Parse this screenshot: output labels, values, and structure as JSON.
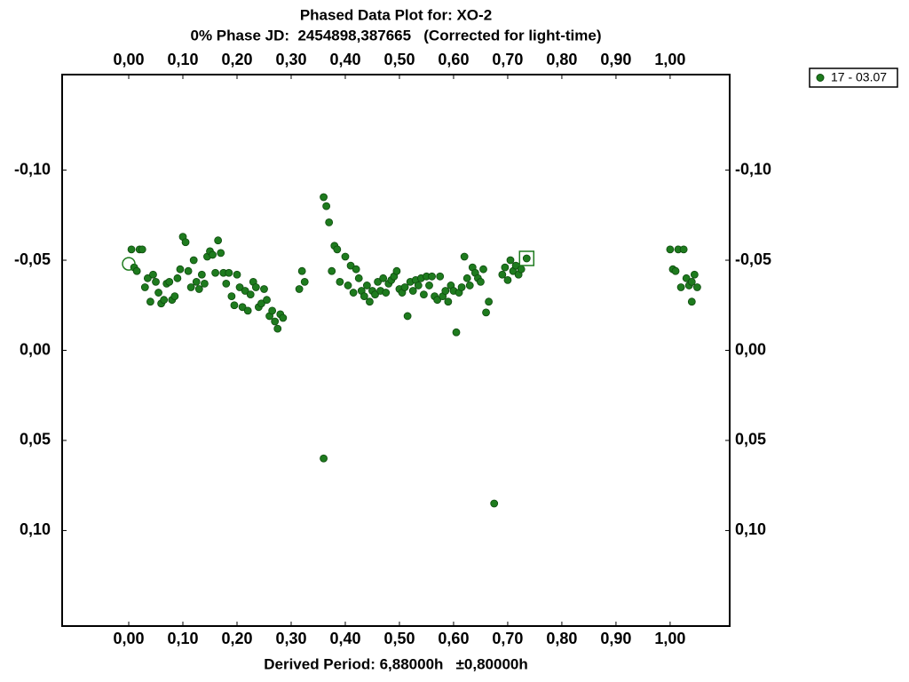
{
  "chart_data": {
    "type": "scatter",
    "title": "Phased Data Plot for: XO-2",
    "subtitle": "0% Phase JD:  2454898,387665   (Corrected for light-time)",
    "x_label": "Derived Period: 6,88000h   ±0,80000h",
    "xlim": [
      -0.123,
      1.11
    ],
    "ylim": [
      -0.153,
      0.153
    ],
    "y_inverted": true,
    "xticks": [
      {
        "value": 0,
        "label": "0,00"
      },
      {
        "value": 0.1,
        "label": "0,10"
      },
      {
        "value": 0.2,
        "label": "0,20"
      },
      {
        "value": 0.3,
        "label": "0,30"
      },
      {
        "value": 0.4,
        "label": "0,40"
      },
      {
        "value": 0.5,
        "label": "0,50"
      },
      {
        "value": 0.6,
        "label": "0,60"
      },
      {
        "value": 0.7,
        "label": "0,70"
      },
      {
        "value": 0.8,
        "label": "0,80"
      },
      {
        "value": 0.9,
        "label": "0,90"
      },
      {
        "value": 1,
        "label": "1,00"
      }
    ],
    "yticks": [
      {
        "value": -0.1,
        "label": "-0,10"
      },
      {
        "value": -0.05,
        "label": "-0,05"
      },
      {
        "value": 0,
        "label": "0,00"
      },
      {
        "value": 0.05,
        "label": "0,05"
      },
      {
        "value": 0.1,
        "label": "0,10"
      }
    ],
    "legend_position": "top-right",
    "series": [
      {
        "name": "17 - 03.07",
        "color": "#1e7b1e",
        "x": [
          0.005,
          0.01,
          0.015,
          0.02,
          0.025,
          0.03,
          0.035,
          0.04,
          0.045,
          0.05,
          0.055,
          0.06,
          0.065,
          0.07,
          0.075,
          0.08,
          0.085,
          0.09,
          0.095,
          0.1,
          0.105,
          0.11,
          0.115,
          0.12,
          0.125,
          0.13,
          0.135,
          0.14,
          0.145,
          0.15,
          0.155,
          0.16,
          0.165,
          0.17,
          0.175,
          0.18,
          0.185,
          0.19,
          0.195,
          0.2,
          0.205,
          0.21,
          0.215,
          0.22,
          0.225,
          0.23,
          0.235,
          0.24,
          0.245,
          0.25,
          0.255,
          0.26,
          0.265,
          0.27,
          0.275,
          0.28,
          0.285,
          0.315,
          0.32,
          0.325,
          0.36,
          0.36,
          0.365,
          0.37,
          0.375,
          0.38,
          0.385,
          0.39,
          0.4,
          0.405,
          0.41,
          0.415,
          0.42,
          0.425,
          0.43,
          0.435,
          0.44,
          0.445,
          0.45,
          0.455,
          0.46,
          0.465,
          0.47,
          0.475,
          0.48,
          0.485,
          0.49,
          0.495,
          0.5,
          0.505,
          0.51,
          0.515,
          0.52,
          0.525,
          0.53,
          0.535,
          0.54,
          0.545,
          0.55,
          0.555,
          0.56,
          0.565,
          0.57,
          0.575,
          0.58,
          0.585,
          0.59,
          0.595,
          0.6,
          0.605,
          0.61,
          0.615,
          0.62,
          0.625,
          0.63,
          0.635,
          0.64,
          0.645,
          0.65,
          0.655,
          0.66,
          0.665,
          0.675,
          0.69,
          0.695,
          0.7,
          0.705,
          0.71,
          0.715,
          0.72,
          0.725,
          0.735,
          1.0,
          1.005,
          1.01,
          1.015,
          1.02,
          1.025,
          1.03,
          1.035,
          1.04,
          1.045,
          1.05,
          1.04
        ],
        "values": [
          -0.056,
          -0.046,
          -0.044,
          -0.056,
          -0.056,
          -0.035,
          -0.04,
          -0.027,
          -0.042,
          -0.038,
          -0.032,
          -0.026,
          -0.028,
          -0.037,
          -0.038,
          -0.028,
          -0.03,
          -0.04,
          -0.045,
          -0.063,
          -0.06,
          -0.044,
          -0.035,
          -0.05,
          -0.038,
          -0.034,
          -0.042,
          -0.037,
          -0.052,
          -0.055,
          -0.053,
          -0.043,
          -0.061,
          -0.054,
          -0.043,
          -0.037,
          -0.043,
          -0.03,
          -0.025,
          -0.042,
          -0.035,
          -0.024,
          -0.033,
          -0.022,
          -0.031,
          -0.038,
          -0.035,
          -0.024,
          -0.026,
          -0.034,
          -0.028,
          -0.019,
          -0.022,
          -0.016,
          -0.012,
          -0.02,
          -0.018,
          -0.034,
          -0.044,
          -0.038,
          0.06,
          -0.085,
          -0.08,
          -0.071,
          -0.044,
          -0.058,
          -0.056,
          -0.038,
          -0.052,
          -0.036,
          -0.047,
          -0.032,
          -0.045,
          -0.04,
          -0.033,
          -0.03,
          -0.036,
          -0.027,
          -0.033,
          -0.031,
          -0.038,
          -0.033,
          -0.04,
          -0.032,
          -0.037,
          -0.039,
          -0.041,
          -0.044,
          -0.034,
          -0.032,
          -0.035,
          -0.019,
          -0.038,
          -0.033,
          -0.039,
          -0.036,
          -0.04,
          -0.031,
          -0.041,
          -0.036,
          -0.041,
          -0.03,
          -0.028,
          -0.041,
          -0.03,
          -0.033,
          -0.027,
          -0.036,
          -0.033,
          -0.01,
          -0.032,
          -0.035,
          -0.052,
          -0.04,
          -0.036,
          -0.046,
          -0.043,
          -0.04,
          -0.038,
          -0.045,
          -0.021,
          -0.027,
          0.085,
          -0.042,
          -0.046,
          -0.039,
          -0.05,
          -0.044,
          -0.047,
          -0.042,
          -0.045,
          -0.051,
          -0.056,
          -0.045,
          -0.044,
          -0.056,
          -0.035,
          -0.056,
          -0.04,
          -0.036,
          -0.027,
          -0.042,
          -0.035,
          -0.038
        ]
      }
    ],
    "open_markers": [
      {
        "shape": "circle",
        "x": 0,
        "y": -0.048
      },
      {
        "shape": "square",
        "x": 0.735,
        "y": -0.051
      }
    ]
  }
}
